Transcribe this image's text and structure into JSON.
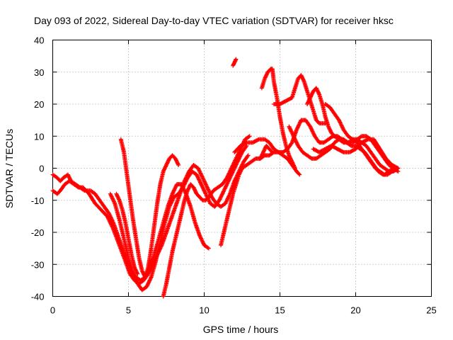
{
  "chart_data": {
    "type": "scatter",
    "title": "Day 093 of 2022, Sidereal Day-to-day VTEC variation (SDTVAR) for receiver hksc",
    "xlabel": "GPS time / hours",
    "ylabel": "SDTVAR / TECUs",
    "xlim": [
      0,
      25
    ],
    "ylim": [
      -40,
      40
    ],
    "xticks": [
      0,
      5,
      10,
      15,
      20,
      25
    ],
    "yticks": [
      -40,
      -30,
      -20,
      -10,
      0,
      10,
      20,
      30,
      40
    ],
    "xtick_labels": [
      "0",
      "5",
      "10",
      "15",
      "20",
      "25"
    ],
    "ytick_labels": [
      "-40",
      "-30",
      "-20",
      "-10",
      "0",
      "10",
      "20",
      "30",
      "40"
    ],
    "grid": true,
    "marker": "plus",
    "color": "#ff0000",
    "tracks": [
      [
        [
          0.0,
          -2
        ],
        [
          0.3,
          -3
        ],
        [
          0.5,
          -4
        ],
        [
          0.7,
          -3
        ],
        [
          1.0,
          -2
        ],
        [
          1.2,
          -4
        ],
        [
          1.5,
          -5
        ],
        [
          1.8,
          -6
        ],
        [
          2.1,
          -7
        ],
        [
          2.5,
          -7
        ],
        [
          2.8,
          -8
        ],
        [
          3.1,
          -10
        ],
        [
          3.4,
          -12
        ],
        [
          3.7,
          -14
        ],
        [
          4.0,
          -17
        ],
        [
          4.3,
          -21
        ],
        [
          4.6,
          -25
        ],
        [
          4.9,
          -29
        ],
        [
          5.2,
          -32
        ],
        [
          5.5,
          -34
        ],
        [
          5.8,
          -35
        ],
        [
          6.1,
          -34
        ],
        [
          6.4,
          -31
        ],
        [
          6.7,
          -27
        ],
        [
          7.0,
          -22
        ],
        [
          7.3,
          -17
        ],
        [
          7.6,
          -12
        ],
        [
          7.9,
          -8
        ],
        [
          8.2,
          -5
        ],
        [
          8.5,
          -5
        ],
        [
          8.8,
          -8
        ],
        [
          9.1,
          -12
        ],
        [
          9.4,
          -17
        ],
        [
          9.7,
          -21
        ],
        [
          10.0,
          -24
        ],
        [
          10.3,
          -25
        ]
      ],
      [
        [
          0.0,
          -7
        ],
        [
          0.3,
          -8
        ],
        [
          0.5,
          -7
        ],
        [
          0.8,
          -5
        ],
        [
          1.1,
          -4
        ],
        [
          1.4,
          -5
        ],
        [
          1.7,
          -6
        ],
        [
          2.0,
          -6
        ],
        [
          2.4,
          -8
        ],
        [
          2.8,
          -11
        ],
        [
          3.2,
          -13
        ],
        [
          3.6,
          -15
        ],
        [
          4.0,
          -19
        ],
        [
          4.4,
          -24
        ],
        [
          4.8,
          -29
        ],
        [
          5.1,
          -33
        ],
        [
          5.4,
          -35
        ],
        [
          5.7,
          -36
        ],
        [
          6.0,
          -35
        ],
        [
          6.3,
          -33
        ],
        [
          6.6,
          -30
        ],
        [
          6.9,
          -27
        ],
        [
          7.2,
          -24
        ],
        [
          7.5,
          -20
        ],
        [
          7.8,
          -16
        ],
        [
          8.1,
          -12
        ],
        [
          8.4,
          -8
        ],
        [
          8.7,
          -4
        ],
        [
          9.0,
          -1
        ],
        [
          9.3,
          1
        ],
        [
          9.6,
          0
        ],
        [
          9.9,
          -3
        ],
        [
          10.2,
          -6
        ],
        [
          10.5,
          -9
        ],
        [
          10.8,
          -11
        ],
        [
          11.1,
          -12
        ],
        [
          11.4,
          -11
        ],
        [
          11.7,
          -8
        ],
        [
          12.0,
          -4
        ],
        [
          12.3,
          -1
        ],
        [
          12.6,
          2
        ],
        [
          12.9,
          4
        ]
      ],
      [
        [
          4.5,
          9
        ],
        [
          4.7,
          5
        ],
        [
          4.9,
          -2
        ],
        [
          5.1,
          -9
        ],
        [
          5.3,
          -16
        ],
        [
          5.5,
          -22
        ],
        [
          5.7,
          -28
        ],
        [
          5.9,
          -32
        ],
        [
          6.1,
          -34
        ],
        [
          6.3,
          -31
        ],
        [
          6.5,
          -25
        ],
        [
          6.7,
          -18
        ],
        [
          6.9,
          -11
        ],
        [
          7.1,
          -5
        ],
        [
          7.3,
          -1
        ],
        [
          7.5,
          1
        ],
        [
          7.7,
          3
        ],
        [
          7.9,
          4
        ],
        [
          8.1,
          3
        ],
        [
          8.3,
          1
        ]
      ],
      [
        [
          3.8,
          -8
        ],
        [
          4.1,
          -11
        ],
        [
          4.4,
          -16
        ],
        [
          4.7,
          -22
        ],
        [
          5.0,
          -28
        ],
        [
          5.3,
          -33
        ],
        [
          5.6,
          -36
        ],
        [
          5.9,
          -38
        ],
        [
          6.2,
          -37
        ],
        [
          6.5,
          -34
        ],
        [
          6.8,
          -29
        ],
        [
          7.1,
          -23
        ],
        [
          7.4,
          -17
        ],
        [
          7.7,
          -12
        ],
        [
          8.0,
          -9
        ],
        [
          8.3,
          -8
        ],
        [
          8.6,
          -6
        ],
        [
          8.9,
          -3
        ],
        [
          9.2,
          -1
        ],
        [
          9.5,
          -2
        ],
        [
          9.8,
          -5
        ],
        [
          10.1,
          -8
        ],
        [
          10.4,
          -11
        ],
        [
          10.7,
          -12
        ],
        [
          11.0,
          -10
        ],
        [
          11.3,
          -7
        ],
        [
          11.6,
          -4
        ],
        [
          11.9,
          -1
        ],
        [
          12.2,
          2
        ],
        [
          12.5,
          5
        ],
        [
          12.8,
          7
        ]
      ],
      [
        [
          7.3,
          -40
        ],
        [
          7.5,
          -36
        ],
        [
          7.7,
          -31
        ],
        [
          7.9,
          -26
        ],
        [
          8.1,
          -22
        ],
        [
          8.3,
          -18
        ],
        [
          8.5,
          -14
        ],
        [
          8.7,
          -10
        ],
        [
          8.9,
          -7
        ],
        [
          9.1,
          -5
        ],
        [
          9.3,
          -6
        ],
        [
          9.5,
          -8
        ],
        [
          9.7,
          -9
        ],
        [
          9.9,
          -10
        ],
        [
          10.1,
          -10
        ],
        [
          10.3,
          -9
        ],
        [
          10.6,
          -7
        ],
        [
          10.9,
          -6
        ],
        [
          11.2,
          -5
        ],
        [
          11.5,
          -3
        ],
        [
          11.8,
          0
        ],
        [
          12.1,
          3
        ],
        [
          12.4,
          6
        ],
        [
          12.7,
          9
        ],
        [
          13.0,
          10
        ]
      ],
      [
        [
          11.1,
          -24
        ],
        [
          11.3,
          -20
        ],
        [
          11.5,
          -16
        ],
        [
          11.7,
          -12
        ],
        [
          11.9,
          -8
        ],
        [
          12.1,
          -5
        ],
        [
          12.3,
          -2
        ],
        [
          12.5,
          0
        ],
        [
          12.8,
          1
        ],
        [
          13.1,
          2
        ],
        [
          13.4,
          3
        ],
        [
          13.7,
          3
        ],
        [
          14.0,
          4
        ],
        [
          14.3,
          4
        ],
        [
          14.6,
          5
        ],
        [
          14.9,
          5
        ],
        [
          15.2,
          4
        ],
        [
          15.5,
          3
        ],
        [
          15.8,
          1
        ],
        [
          16.1,
          -1
        ],
        [
          16.3,
          -2
        ]
      ],
      [
        [
          11.9,
          32
        ],
        [
          12.0,
          33
        ],
        [
          12.1,
          34
        ]
      ],
      [
        [
          13.8,
          25
        ],
        [
          14.0,
          28
        ],
        [
          14.2,
          30
        ],
        [
          14.4,
          31
        ],
        [
          14.5,
          31
        ],
        [
          14.6,
          27
        ],
        [
          14.8,
          22
        ],
        [
          15.0,
          16
        ],
        [
          15.2,
          11
        ],
        [
          15.4,
          7
        ],
        [
          15.6,
          4
        ],
        [
          15.8,
          2
        ],
        [
          16.0,
          0
        ]
      ],
      [
        [
          12.0,
          5
        ],
        [
          12.4,
          7
        ],
        [
          12.8,
          8
        ],
        [
          13.2,
          8
        ],
        [
          13.6,
          9
        ],
        [
          14.0,
          9
        ],
        [
          14.3,
          8
        ],
        [
          14.6,
          6
        ],
        [
          14.9,
          5
        ],
        [
          15.2,
          5
        ],
        [
          15.5,
          6
        ],
        [
          15.8,
          8
        ],
        [
          16.1,
          12
        ],
        [
          16.4,
          15
        ],
        [
          16.7,
          15
        ],
        [
          17.0,
          13
        ],
        [
          17.3,
          10
        ],
        [
          17.6,
          8
        ],
        [
          17.9,
          8
        ],
        [
          18.2,
          9
        ],
        [
          18.5,
          10
        ],
        [
          18.8,
          10
        ],
        [
          19.1,
          9
        ],
        [
          19.4,
          8
        ],
        [
          19.7,
          7
        ],
        [
          20.0,
          7
        ],
        [
          20.3,
          6
        ],
        [
          20.6,
          5
        ],
        [
          20.9,
          3
        ],
        [
          21.2,
          1
        ],
        [
          21.5,
          -1
        ],
        [
          21.8,
          -2
        ],
        [
          22.1,
          -2
        ],
        [
          22.4,
          -1
        ],
        [
          22.7,
          0
        ]
      ],
      [
        [
          14.6,
          20
        ],
        [
          15.0,
          20
        ],
        [
          15.4,
          21
        ],
        [
          15.8,
          22
        ],
        [
          16.0,
          25
        ],
        [
          16.2,
          28
        ],
        [
          16.4,
          29
        ],
        [
          16.6,
          27
        ],
        [
          16.8,
          24
        ],
        [
          17.0,
          21
        ],
        [
          17.2,
          18
        ],
        [
          17.4,
          15
        ],
        [
          17.6,
          14
        ],
        [
          17.8,
          14
        ],
        [
          18.0,
          14
        ]
      ],
      [
        [
          15.6,
          13
        ],
        [
          15.9,
          10
        ],
        [
          16.2,
          7
        ],
        [
          16.5,
          5
        ],
        [
          16.8,
          4
        ],
        [
          17.1,
          3
        ],
        [
          17.4,
          3
        ],
        [
          17.7,
          4
        ],
        [
          18.0,
          5
        ],
        [
          18.3,
          6
        ],
        [
          18.6,
          8
        ],
        [
          18.9,
          9
        ],
        [
          19.2,
          9
        ],
        [
          19.5,
          8
        ],
        [
          19.8,
          8
        ],
        [
          20.1,
          9
        ],
        [
          20.4,
          10
        ],
        [
          20.7,
          10
        ],
        [
          21.0,
          9
        ],
        [
          21.3,
          7
        ],
        [
          21.6,
          5
        ],
        [
          21.9,
          3
        ],
        [
          22.2,
          1
        ],
        [
          22.5,
          0
        ],
        [
          22.8,
          -1
        ]
      ],
      [
        [
          16.8,
          20
        ],
        [
          17.0,
          22
        ],
        [
          17.2,
          24
        ],
        [
          17.4,
          25
        ],
        [
          17.6,
          23
        ],
        [
          17.8,
          20
        ],
        [
          18.0,
          16
        ],
        [
          18.2,
          13
        ],
        [
          18.4,
          11
        ],
        [
          18.6,
          10
        ],
        [
          18.9,
          9
        ],
        [
          19.2,
          8
        ],
        [
          19.5,
          8
        ],
        [
          19.8,
          9
        ],
        [
          20.1,
          8
        ],
        [
          20.4,
          6
        ],
        [
          20.7,
          4
        ],
        [
          21.0,
          2
        ],
        [
          21.3,
          0
        ],
        [
          21.6,
          -1
        ],
        [
          21.9,
          -2
        ],
        [
          22.2,
          -1
        ],
        [
          22.5,
          0
        ]
      ],
      [
        [
          18.0,
          20
        ],
        [
          18.3,
          19
        ],
        [
          18.6,
          17
        ],
        [
          18.9,
          15
        ],
        [
          19.2,
          12
        ],
        [
          19.5,
          10
        ],
        [
          19.8,
          9
        ],
        [
          20.1,
          9
        ],
        [
          20.4,
          8
        ],
        [
          20.7,
          7
        ],
        [
          21.0,
          5
        ],
        [
          21.3,
          3
        ],
        [
          21.6,
          1
        ],
        [
          21.9,
          0
        ],
        [
          22.2,
          -1
        ],
        [
          22.5,
          -1
        ],
        [
          22.8,
          0
        ]
      ],
      [
        [
          17.2,
          6
        ],
        [
          17.6,
          5
        ],
        [
          18.0,
          6
        ],
        [
          18.4,
          7
        ],
        [
          18.8,
          6
        ],
        [
          19.2,
          5
        ],
        [
          19.6,
          5
        ],
        [
          20.0,
          6
        ],
        [
          20.4,
          8
        ],
        [
          20.8,
          9
        ],
        [
          21.2,
          9
        ],
        [
          21.6,
          6
        ],
        [
          22.0,
          3
        ],
        [
          22.4,
          1
        ],
        [
          22.8,
          0
        ]
      ],
      [
        [
          13.7,
          3
        ],
        [
          13.9,
          5
        ],
        [
          14.1,
          7
        ],
        [
          14.3,
          6
        ],
        [
          14.5,
          5
        ]
      ],
      [
        [
          4.2,
          -8
        ],
        [
          4.4,
          -10
        ],
        [
          4.6,
          -13
        ],
        [
          4.8,
          -17
        ],
        [
          5.0,
          -22
        ],
        [
          5.2,
          -27
        ],
        [
          5.4,
          -31
        ],
        [
          5.6,
          -33
        ]
      ]
    ]
  }
}
